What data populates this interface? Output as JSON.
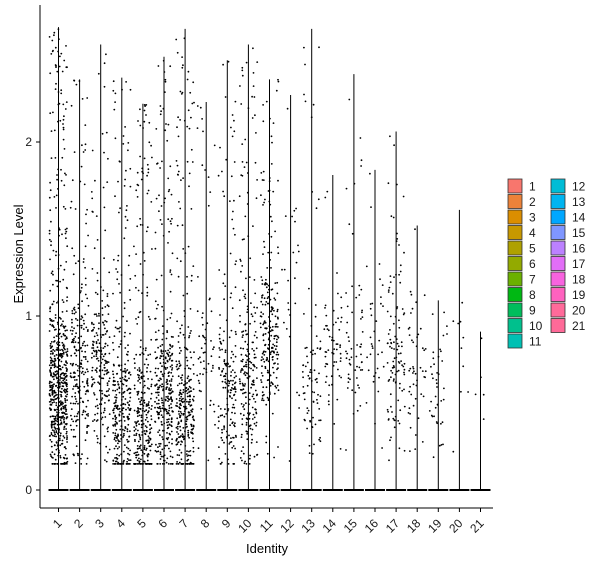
{
  "chart_data": {
    "type": "violin",
    "title": "",
    "xlabel": "Identity",
    "ylabel": "Expression Level",
    "ylim": [
      -0.13,
      2.78
    ],
    "y_ticks": [
      0,
      1,
      2
    ],
    "categories": [
      "1",
      "2",
      "3",
      "4",
      "5",
      "6",
      "7",
      "8",
      "9",
      "10",
      "11",
      "12",
      "13",
      "14",
      "15",
      "16",
      "17",
      "18",
      "19",
      "20",
      "21"
    ],
    "max_values": [
      2.66,
      2.36,
      2.56,
      2.37,
      2.22,
      2.49,
      2.65,
      2.23,
      2.47,
      2.56,
      2.36,
      2.27,
      2.65,
      1.81,
      2.39,
      1.84,
      2.06,
      1.52,
      1.09,
      1.61,
      0.91
    ],
    "cloud_center": [
      0.55,
      0.7,
      0.7,
      0.45,
      0.35,
      0.55,
      0.45,
      0.75,
      0.55,
      0.65,
      0.9,
      1.2,
      0.65,
      0.85,
      0.8,
      0.9,
      0.8,
      0.7,
      0.5,
      0.6,
      0.5
    ],
    "point_counts": [
      620,
      230,
      210,
      300,
      300,
      320,
      320,
      60,
      180,
      220,
      230,
      25,
      80,
      60,
      60,
      35,
      110,
      50,
      40,
      10,
      5
    ],
    "grid": false,
    "legend_position": "right",
    "legend_columns": [
      [
        "1",
        "2",
        "3",
        "4",
        "5",
        "6",
        "7",
        "8",
        "9",
        "10",
        "11"
      ],
      [
        "12",
        "13",
        "14",
        "15",
        "16",
        "17",
        "18",
        "19",
        "20",
        "21"
      ]
    ],
    "colors": [
      "#F8766D",
      "#EC8239",
      "#DB8E00",
      "#C79800",
      "#AFA100",
      "#93AA00",
      "#6BB100",
      "#00B813",
      "#00BD5C",
      "#00C08D",
      "#00C0B3",
      "#00BCD6",
      "#00B4F0",
      "#00A7FF",
      "#7F96FF",
      "#BC81FF",
      "#E26EF7",
      "#F863DF",
      "#FF62BF",
      "#FF6A9A",
      "#FF6A98"
    ]
  }
}
